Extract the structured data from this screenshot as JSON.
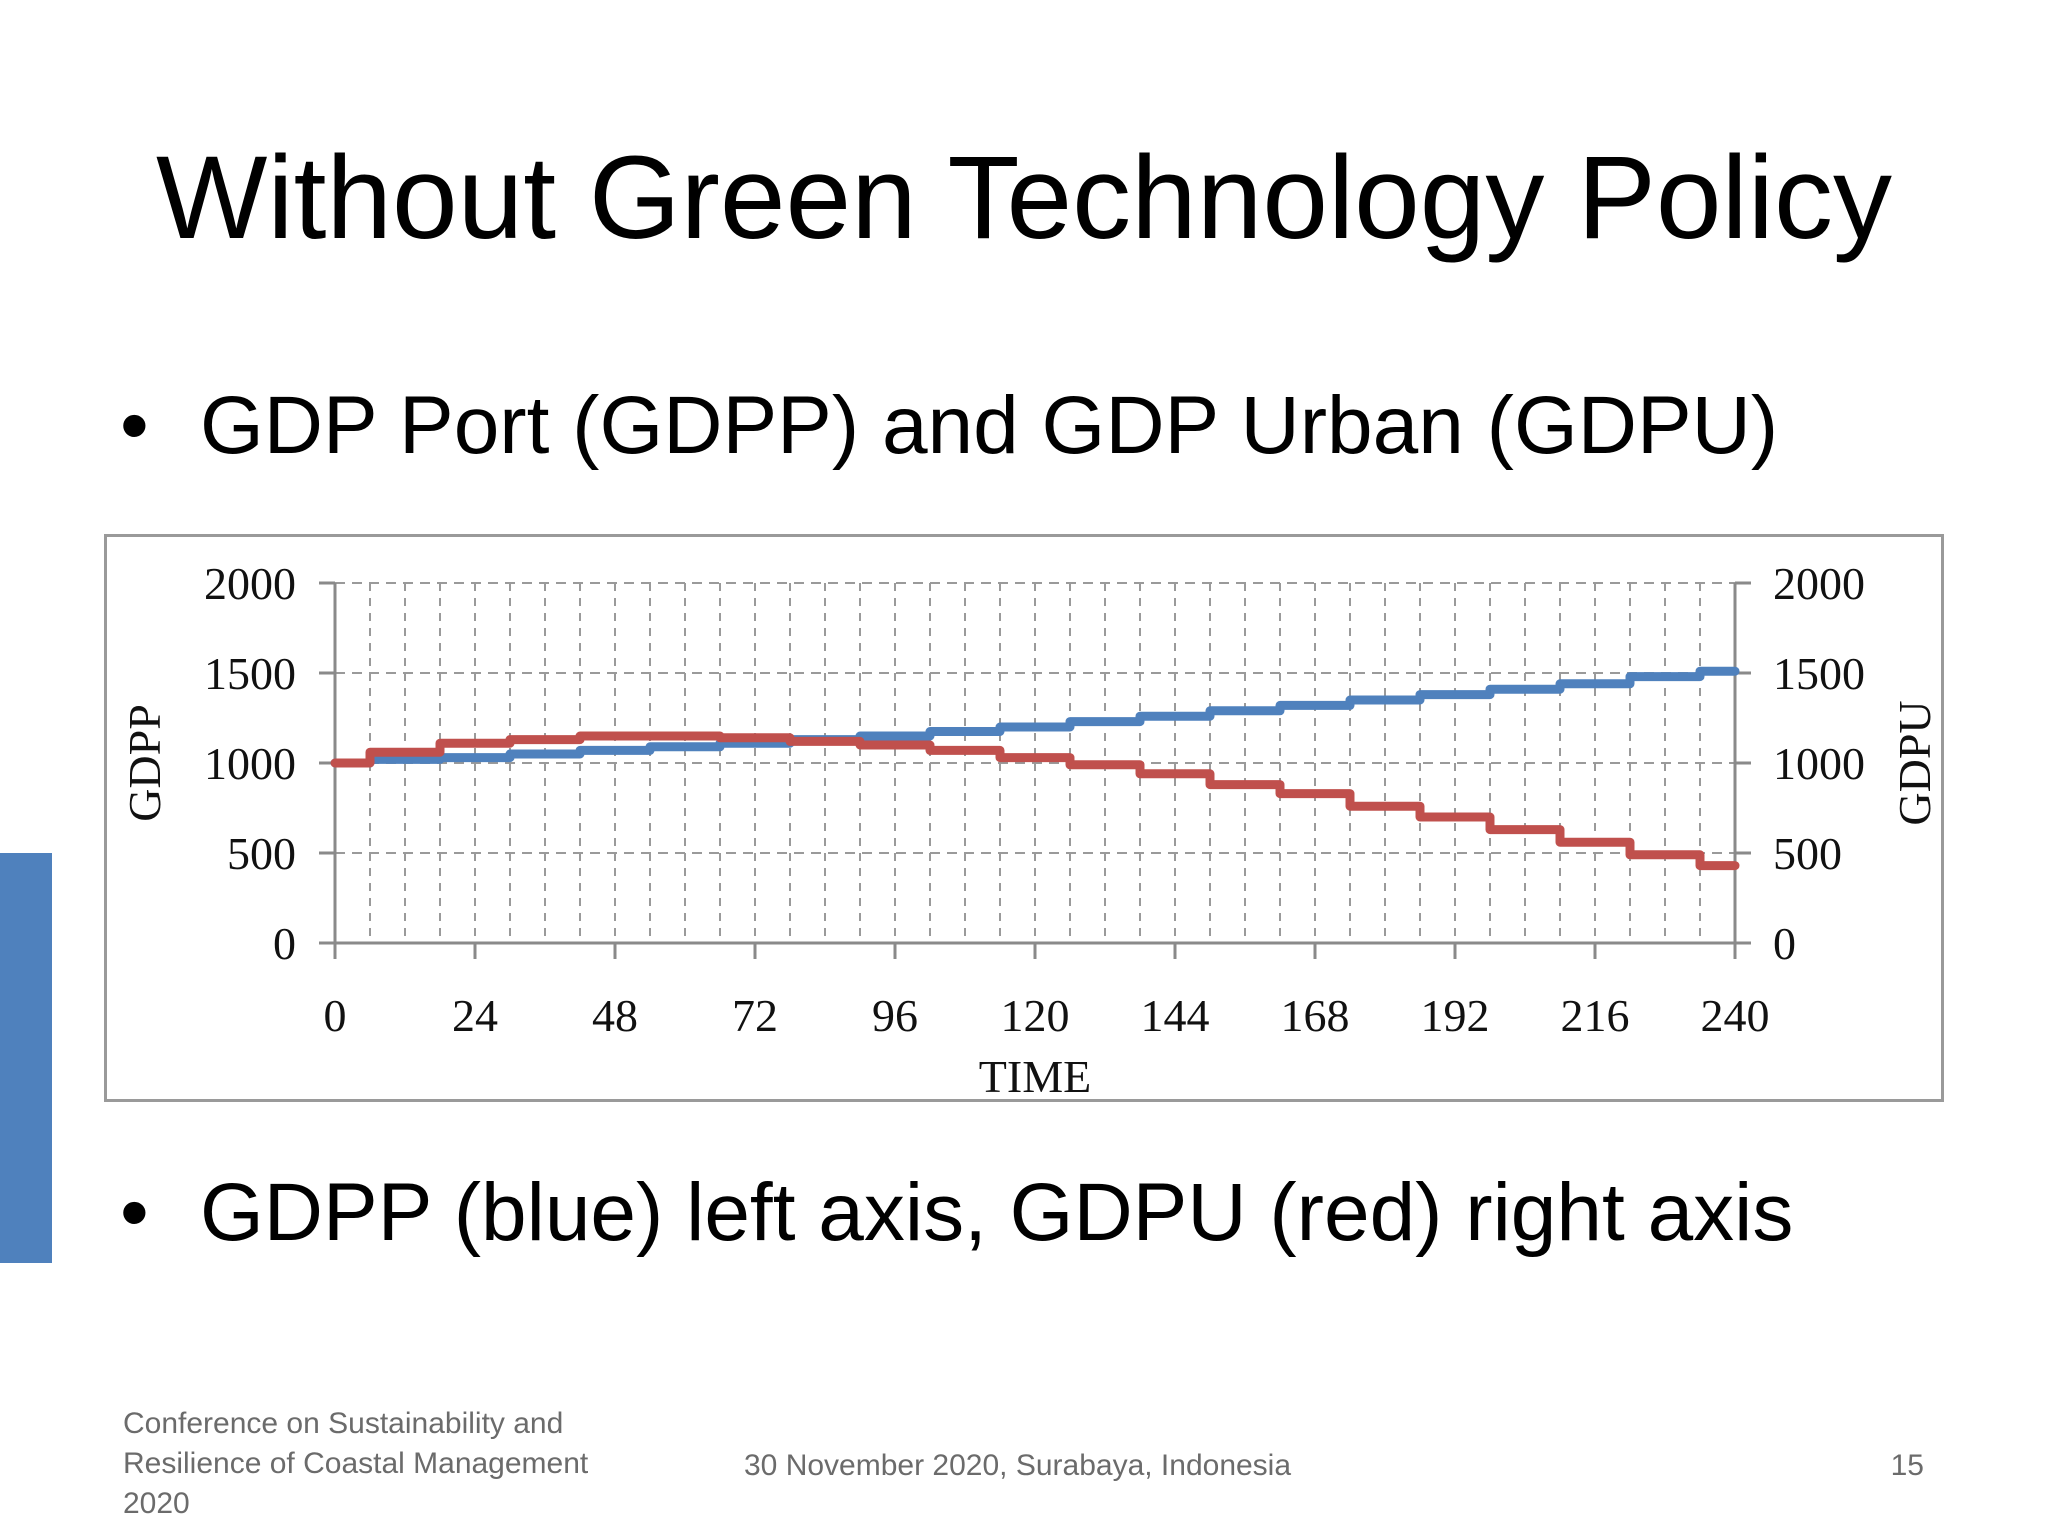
{
  "slide": {
    "title": "Without Green Technology Policy",
    "bullets": [
      "GDP Port (GDPP) and GDP Urban (GDPU)",
      "GDPP (blue) left axis, GDPU (red) right axis"
    ],
    "bullet_symbol": "•",
    "footer_left": "Conference on Sustainability and Resilience of Coastal Management 2020",
    "footer_center": "30 November 2020, Surabaya, Indonesia",
    "page_number": "15"
  },
  "colors": {
    "accent": "#4f81bd",
    "gdpp": "#4f81bd",
    "gdpu": "#c0504d",
    "grid": "#9a9a9a",
    "axis": "#8a8a8a"
  },
  "chart_data": {
    "type": "line",
    "title": "",
    "xlabel": "TIME",
    "ylabel_left": "GDPP",
    "ylabel_right": "GDPU",
    "xlim": [
      0,
      240
    ],
    "ylim_left": [
      0,
      2000
    ],
    "ylim_right": [
      0,
      2000
    ],
    "x_ticks": [
      "0",
      "24",
      "48",
      "72",
      "96",
      "120",
      "144",
      "168",
      "192",
      "216",
      "240"
    ],
    "y_ticks_left": [
      "0",
      "500",
      "1000",
      "1500",
      "2000"
    ],
    "y_ticks_right": [
      "0",
      "500",
      "1000",
      "1500",
      "2000"
    ],
    "grid": true,
    "series": [
      {
        "name": "GDPP",
        "axis": "left",
        "color": "#4f81bd",
        "x": [
          0,
          12,
          24,
          36,
          48,
          60,
          72,
          84,
          96,
          108,
          120,
          132,
          144,
          156,
          168,
          180,
          192,
          204,
          216,
          228,
          240
        ],
        "y": [
          1000,
          1020,
          1030,
          1050,
          1070,
          1090,
          1110,
          1130,
          1150,
          1175,
          1200,
          1230,
          1260,
          1290,
          1320,
          1350,
          1380,
          1410,
          1440,
          1480,
          1510
        ]
      },
      {
        "name": "GDPU",
        "axis": "right",
        "color": "#c0504d",
        "x": [
          0,
          12,
          24,
          36,
          48,
          60,
          72,
          84,
          96,
          108,
          120,
          132,
          144,
          156,
          168,
          180,
          192,
          204,
          216,
          228,
          240
        ],
        "y": [
          1000,
          1060,
          1110,
          1130,
          1150,
          1150,
          1140,
          1120,
          1100,
          1070,
          1030,
          990,
          940,
          880,
          830,
          760,
          700,
          630,
          560,
          490,
          430
        ]
      }
    ]
  }
}
